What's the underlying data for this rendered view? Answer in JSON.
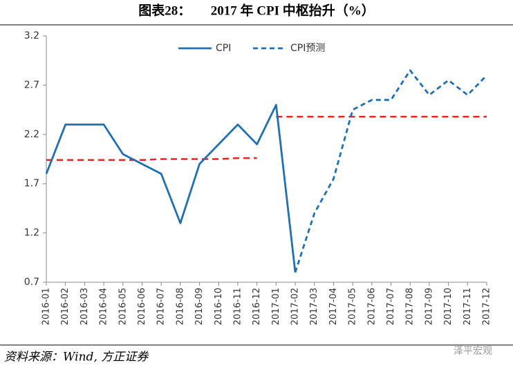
{
  "chart_data": {
    "type": "line",
    "title": "图表28：　　2017 年 CPI 中枢抬升（%）",
    "source": "资料来源：Wind, 方正证券",
    "watermark": "泽平宏观",
    "categories": [
      "2016-01",
      "2016-02",
      "2016-03",
      "2016-04",
      "2016-05",
      "2016-06",
      "2016-07",
      "2016-08",
      "2016-09",
      "2016-10",
      "2016-11",
      "2016-12",
      "2017-01",
      "2017-02",
      "2017-03",
      "2017-04",
      "2017-05",
      "2017-06",
      "2017-07",
      "2017-08",
      "2017-09",
      "2017-10",
      "2017-11",
      "2017-12"
    ],
    "series": [
      {
        "name": "CPI",
        "color": "#1f6fb4",
        "dashed": false,
        "values": [
          1.8,
          2.3,
          2.3,
          2.3,
          2.0,
          1.9,
          1.8,
          1.3,
          1.9,
          2.1,
          2.3,
          2.1,
          2.5,
          0.8,
          null,
          null,
          null,
          null,
          null,
          null,
          null,
          null,
          null,
          null
        ]
      },
      {
        "name": "CPI预测",
        "color": "#1f6fb4",
        "dashed": true,
        "values": [
          null,
          null,
          null,
          null,
          null,
          null,
          null,
          null,
          null,
          null,
          null,
          null,
          null,
          0.8,
          1.4,
          1.75,
          2.45,
          2.55,
          2.55,
          2.85,
          2.6,
          2.75,
          2.6,
          2.8
        ]
      }
    ],
    "reference_series": [
      {
        "color": "#e8221c",
        "values": [
          1.94,
          1.94,
          1.94,
          1.94,
          1.94,
          1.94,
          1.95,
          1.95,
          1.95,
          1.95,
          1.96,
          1.96,
          null,
          null,
          null,
          null,
          null,
          null,
          null,
          null,
          null,
          null,
          null,
          null
        ]
      },
      {
        "color": "#e8221c",
        "values": [
          null,
          null,
          null,
          null,
          null,
          null,
          null,
          null,
          null,
          null,
          null,
          null,
          2.38,
          2.38,
          2.38,
          2.38,
          2.38,
          2.38,
          2.38,
          2.38,
          2.38,
          2.38,
          2.38,
          2.38
        ]
      }
    ],
    "ylim": [
      0.7,
      3.2
    ],
    "yticks": [
      0.7,
      1.2,
      1.7,
      2.2,
      2.7,
      3.2
    ],
    "grid": false,
    "legend": "top"
  }
}
